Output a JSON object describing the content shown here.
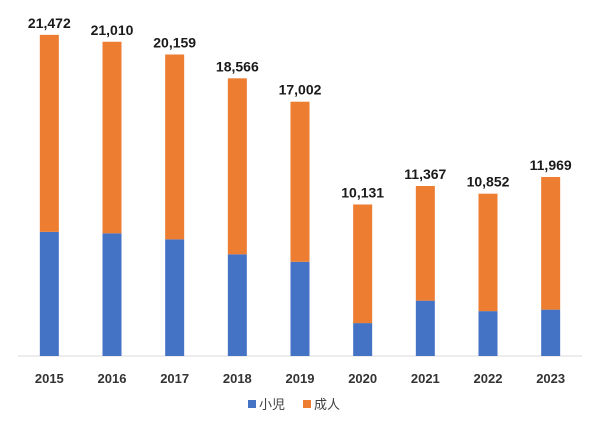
{
  "chart_data": {
    "type": "bar",
    "stacked": true,
    "title": "",
    "xlabel": "",
    "ylabel": "",
    "categories": [
      "2015",
      "2016",
      "2017",
      "2018",
      "2019",
      "2020",
      "2021",
      "2022",
      "2023"
    ],
    "series": [
      {
        "name": "小児",
        "color": "#4472C4",
        "values": [
          8300,
          8200,
          7800,
          6800,
          6300,
          2200,
          3700,
          3000,
          3100
        ]
      },
      {
        "name": "成人",
        "color": "#ED7D31",
        "values": [
          13172,
          12810,
          12359,
          11766,
          10702,
          7931,
          7667,
          7852,
          8869
        ]
      }
    ],
    "totals": [
      "21,472",
      "21,010",
      "20,159",
      "18,566",
      "17,002",
      "10,131",
      "11,367",
      "10,852",
      "11,969"
    ],
    "ylim": [
      0,
      23000
    ],
    "grid": false,
    "legend": "bottom"
  }
}
